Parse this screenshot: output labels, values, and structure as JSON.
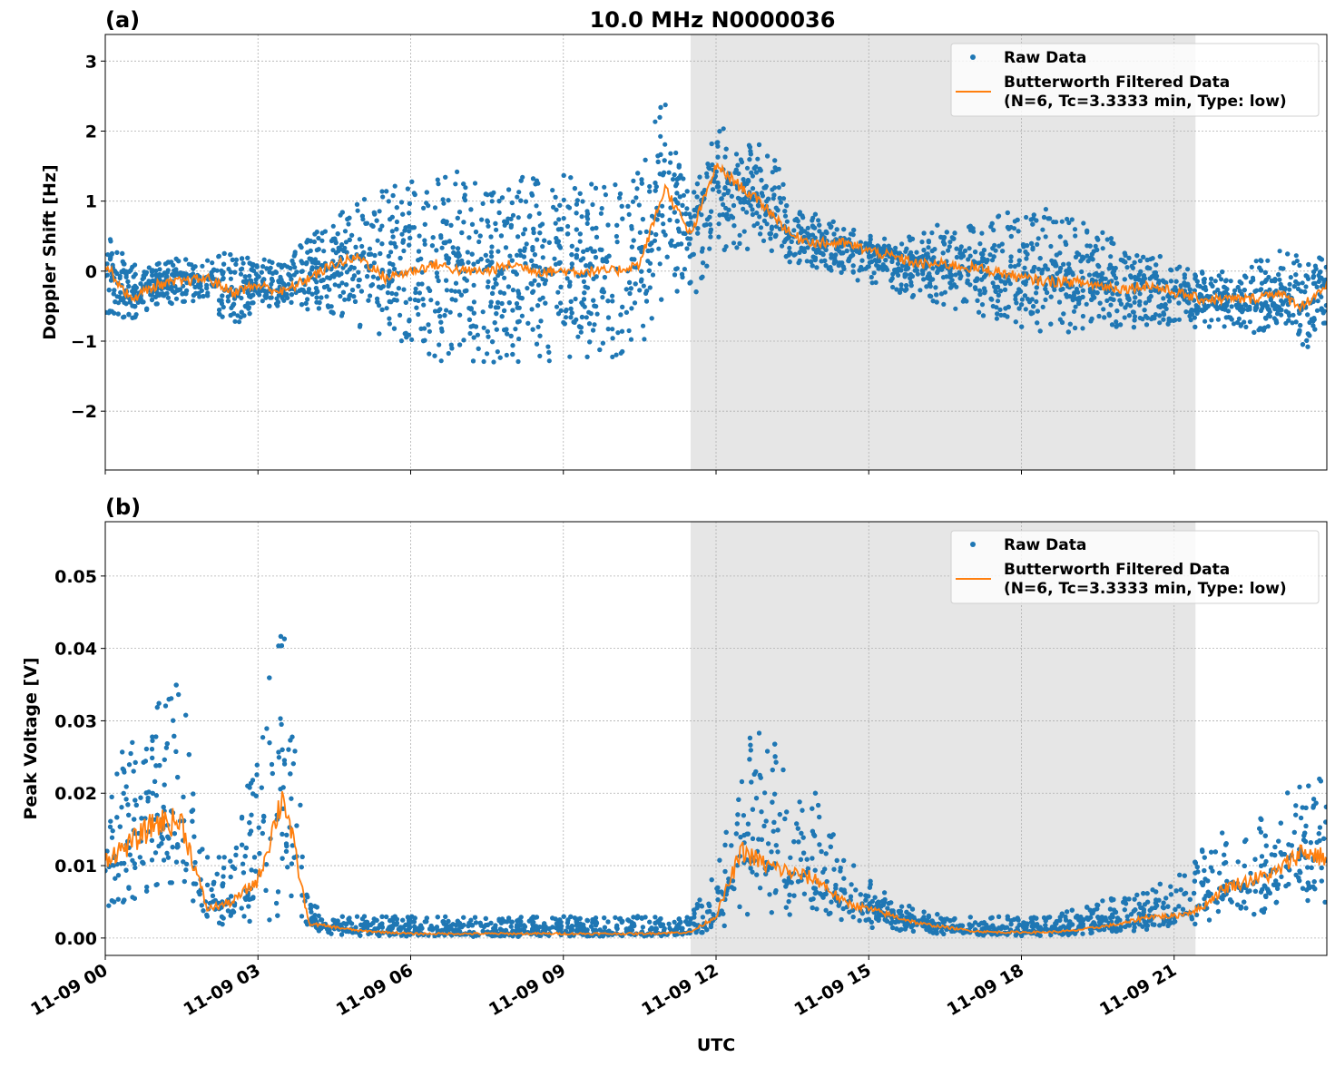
{
  "chart_data": [
    {
      "type": "scatter",
      "panel_label": "(a)",
      "title": "10.0 MHz N0000036",
      "xlabel": "",
      "ylabel": "Doppler Shift [Hz]",
      "x_tick_labels": [
        "11-09 00",
        "11-09 03",
        "11-09 06",
        "11-09 09",
        "11-09 12",
        "11-09 15",
        "11-09 18",
        "11-09 21"
      ],
      "x_ticks_hours": [
        0,
        3,
        6,
        9,
        12,
        15,
        18,
        21
      ],
      "xlim_hours": [
        0,
        24
      ],
      "ylim": [
        -2.84,
        3.38
      ],
      "y_ticks": [
        -2,
        -1,
        0,
        1,
        2,
        3
      ],
      "y_tick_labels": [
        "−2",
        "−1",
        "0",
        "1",
        "2",
        "3"
      ],
      "grid": true,
      "shaded_interval_hours": [
        11.5,
        21.42
      ],
      "legend": {
        "placement": "top-right",
        "raw_label": "Raw Data",
        "filtered_label_1": "Butterworth Filtered Data",
        "filtered_label_2": "(N=6, Tc=3.3333 min, Type: low)"
      },
      "time_hours": [
        0,
        0.5,
        1,
        1.5,
        2,
        2.5,
        3,
        3.5,
        4,
        4.5,
        5,
        5.5,
        6,
        6.5,
        7,
        7.5,
        8,
        8.5,
        9,
        9.5,
        10,
        10.5,
        11,
        11.5,
        12,
        12.5,
        13,
        13.5,
        14,
        14.5,
        15,
        15.5,
        16,
        16.5,
        17,
        17.5,
        18,
        18.5,
        19,
        19.5,
        20,
        20.5,
        21,
        21.5,
        22,
        22.5,
        23,
        23.5,
        24
      ],
      "series": [
        {
          "name": "Butterworth Filtered Data",
          "kind": "line",
          "color": "#ff7f0e",
          "values": [
            0.1,
            -0.4,
            -0.2,
            -0.15,
            -0.1,
            -0.3,
            -0.2,
            -0.3,
            -0.1,
            0.1,
            0.2,
            -0.1,
            0.0,
            0.1,
            0.0,
            0.0,
            0.1,
            0.0,
            0.0,
            0.0,
            0.0,
            0.1,
            1.2,
            0.5,
            1.5,
            1.2,
            0.9,
            0.5,
            0.4,
            0.4,
            0.3,
            0.2,
            0.1,
            0.1,
            0.05,
            0.0,
            -0.1,
            -0.15,
            -0.15,
            -0.2,
            -0.25,
            -0.2,
            -0.3,
            -0.4,
            -0.4,
            -0.4,
            -0.3,
            -0.5,
            -0.2
          ]
        },
        {
          "name": "Raw Data",
          "kind": "scatter",
          "color": "#1f77b4",
          "lower_envelope": [
            -0.6,
            -0.7,
            -0.5,
            -0.5,
            -0.4,
            -0.9,
            -0.5,
            -0.5,
            -0.6,
            -0.6,
            -0.8,
            -1.0,
            -1.2,
            -1.3,
            -1.3,
            -1.3,
            -1.3,
            -1.3,
            -1.3,
            -1.3,
            -1.3,
            -1.2,
            -0.3,
            -0.6,
            0.3,
            0.3,
            0.3,
            0.1,
            0.0,
            -0.1,
            -0.2,
            -0.3,
            -0.4,
            -0.5,
            -0.6,
            -0.7,
            -0.8,
            -0.9,
            -0.9,
            -0.8,
            -0.8,
            -0.8,
            -0.8,
            -0.8,
            -0.8,
            -0.9,
            -0.8,
            -1.3,
            -0.7
          ],
          "upper_envelope": [
            0.6,
            0.1,
            0.1,
            0.2,
            0.2,
            0.3,
            0.2,
            0.1,
            0.5,
            0.8,
            1.0,
            1.2,
            1.3,
            1.4,
            1.4,
            1.4,
            1.4,
            1.4,
            1.4,
            1.4,
            1.4,
            1.4,
            2.8,
            1.0,
            2.2,
            1.8,
            1.9,
            1.0,
            0.8,
            0.7,
            0.5,
            0.5,
            0.6,
            0.7,
            0.7,
            0.8,
            0.9,
            0.9,
            0.8,
            0.6,
            0.4,
            0.3,
            0.1,
            0.0,
            0.0,
            0.1,
            0.3,
            0.3,
            0.2
          ]
        }
      ]
    },
    {
      "type": "scatter",
      "panel_label": "(b)",
      "xlabel": "UTC",
      "ylabel": "Peak Voltage [V]",
      "x_tick_labels": [
        "11-09 00",
        "11-09 03",
        "11-09 06",
        "11-09 09",
        "11-09 12",
        "11-09 15",
        "11-09 18",
        "11-09 21"
      ],
      "x_ticks_hours": [
        0,
        3,
        6,
        9,
        12,
        15,
        18,
        21
      ],
      "xlim_hours": [
        0,
        24
      ],
      "ylim": [
        -0.0024,
        0.0575
      ],
      "y_ticks": [
        0,
        0.01,
        0.02,
        0.03,
        0.04,
        0.05
      ],
      "y_tick_labels": [
        "0.00",
        "0.01",
        "0.02",
        "0.03",
        "0.04",
        "0.05"
      ],
      "grid": true,
      "shaded_interval_hours": [
        11.5,
        21.42
      ],
      "legend": {
        "placement": "top-right",
        "raw_label": "Raw Data",
        "filtered_label_1": "Butterworth Filtered Data",
        "filtered_label_2": "(N=6, Tc=3.3333 min, Type: low)"
      },
      "time_hours": [
        0,
        0.5,
        1,
        1.5,
        2,
        2.5,
        3,
        3.5,
        4,
        4.5,
        5,
        5.5,
        6,
        6.5,
        7,
        7.5,
        8,
        8.5,
        9,
        9.5,
        10,
        10.5,
        11,
        11.5,
        12,
        12.5,
        13,
        13.5,
        14,
        14.5,
        15,
        15.5,
        16,
        16.5,
        17,
        17.5,
        18,
        18.5,
        19,
        19.5,
        20,
        20.5,
        21,
        21.5,
        22,
        22.5,
        23,
        23.5,
        24
      ],
      "series": [
        {
          "name": "Butterworth Filtered Data",
          "kind": "line",
          "color": "#ff7f0e",
          "values": [
            0.011,
            0.013,
            0.016,
            0.016,
            0.004,
            0.005,
            0.008,
            0.02,
            0.002,
            0.0015,
            0.001,
            0.0008,
            0.0006,
            0.0006,
            0.0006,
            0.0006,
            0.0006,
            0.0006,
            0.0006,
            0.0006,
            0.0006,
            0.0006,
            0.0007,
            0.0008,
            0.003,
            0.012,
            0.01,
            0.009,
            0.008,
            0.005,
            0.004,
            0.003,
            0.002,
            0.0015,
            0.001,
            0.0008,
            0.0008,
            0.0008,
            0.001,
            0.0015,
            0.002,
            0.003,
            0.003,
            0.004,
            0.007,
            0.008,
            0.009,
            0.012,
            0.011
          ]
        },
        {
          "name": "Raw Data",
          "kind": "scatter",
          "color": "#1f77b4",
          "lower_envelope": [
            0.004,
            0.005,
            0.006,
            0.006,
            0.002,
            0.001,
            0.002,
            0.003,
            0.001,
            0.0005,
            0.0003,
            0.0002,
            0.0002,
            0.0002,
            0.0002,
            0.0002,
            0.0002,
            0.0002,
            0.0002,
            0.0002,
            0.0002,
            0.0002,
            0.0003,
            0.0004,
            0.001,
            0.003,
            0.003,
            0.003,
            0.003,
            0.002,
            0.001,
            0.001,
            0.0008,
            0.0005,
            0.0004,
            0.0003,
            0.0003,
            0.0003,
            0.0004,
            0.0006,
            0.001,
            0.001,
            0.0015,
            0.002,
            0.003,
            0.003,
            0.004,
            0.004,
            0.005
          ],
          "upper_envelope": [
            0.022,
            0.028,
            0.032,
            0.036,
            0.012,
            0.011,
            0.03,
            0.045,
            0.005,
            0.003,
            0.003,
            0.003,
            0.003,
            0.003,
            0.003,
            0.003,
            0.003,
            0.003,
            0.003,
            0.003,
            0.003,
            0.003,
            0.003,
            0.003,
            0.01,
            0.028,
            0.03,
            0.022,
            0.02,
            0.012,
            0.008,
            0.006,
            0.004,
            0.003,
            0.003,
            0.003,
            0.003,
            0.003,
            0.004,
            0.005,
            0.006,
            0.007,
            0.008,
            0.012,
            0.015,
            0.016,
            0.018,
            0.024,
            0.022
          ]
        }
      ]
    }
  ]
}
